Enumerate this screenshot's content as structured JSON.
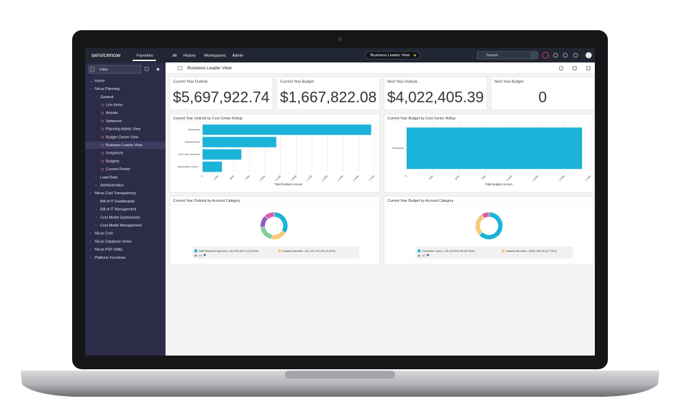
{
  "topbar": {
    "brand": "servicenow",
    "tabs": [
      "Favorites",
      "All",
      "History",
      "Workspaces",
      "Admin"
    ],
    "workspace": "Business Leader View",
    "search": "Search"
  },
  "sidebar": {
    "filter": "Filter",
    "items": [
      "Home",
      "Nicus Planning",
      "General",
      "Line Items",
      "Actuals",
      "Variances",
      "Planning Admin View",
      "Budget Owner View",
      "Business Leader View",
      "Snapshots",
      "Budgets",
      "Current Period",
      "Load Data",
      "Administration",
      "Nicus Cost Transparency",
      "Bill of IT Dashboards",
      "Bill of IT Management",
      "Cost Model Dashboards",
      "Cost Model Management",
      "Nicus Core",
      "Nicus Database Views",
      "Nicus PDF Utility",
      "Platform Functions"
    ]
  },
  "toolbar": {
    "title": "Business Leader View"
  },
  "cards": [
    {
      "title": "Current Year Outlook",
      "value": "$5,697,922.74"
    },
    {
      "title": "Current Year Budget",
      "value": "$1,667,822.08"
    },
    {
      "title": "Next Year Outlook",
      "value": "$4,022,405.39"
    },
    {
      "title": "Next Year Budget",
      "value": "0"
    }
  ],
  "chart_data": [
    {
      "type": "bar",
      "orientation": "horizontal",
      "title": "Current Year Outlook by Cost Center Rollup",
      "categories": [
        "Enterprise",
        "Infrastructure",
        "End User Services",
        "Application Devel..."
      ],
      "values": [
        2700000,
        1180000,
        620000,
        310000
      ],
      "color": "#1bb3d8",
      "xlabel": "Total Outlook Amount",
      "xlim": [
        0,
        2750000
      ],
      "xticks": [
        0,
        {
          "value": 250000,
          "label": "250k"
        },
        {
          "value": 500000,
          "label": "500k"
        },
        {
          "value": 750000,
          "label": "750k"
        },
        {
          "value": 1000000,
          "label": "1,000k"
        },
        {
          "value": 1250000,
          "label": "1,250k"
        },
        {
          "value": 1500000,
          "label": "1,500k"
        },
        {
          "value": 1750000,
          "label": "1,750k"
        },
        {
          "value": 2000000,
          "label": "2,000k"
        },
        {
          "value": 2250000,
          "label": "2,250k"
        },
        {
          "value": 2500000,
          "label": "2,500k"
        },
        {
          "value": 2750000,
          "label": "2,750k"
        }
      ],
      "grid": true
    },
    {
      "type": "bar",
      "orientation": "horizontal",
      "title": "Current Year Budget by Cost Center Rollup",
      "categories": [
        "Enterprise"
      ],
      "values": [
        1667822.08
      ],
      "color": "#1bb3d8",
      "xlabel": "Total Budget Amount",
      "xlim": [
        0,
        1750000
      ],
      "xticks": [
        0,
        {
          "value": 250000,
          "label": "250k"
        },
        {
          "value": 500000,
          "label": "500k"
        },
        {
          "value": 750000,
          "label": "750k"
        },
        {
          "value": 1000000,
          "label": "1,000k"
        },
        {
          "value": 1250000,
          "label": "1,250k"
        },
        {
          "value": 1500000,
          "label": "1,500k"
        },
        {
          "value": 1750000,
          "label": "1,750k"
        }
      ],
      "grid": true
    },
    {
      "type": "pie",
      "donut": true,
      "title": "Current Year Outlook by Account Category",
      "categories": [
        "Staff Related Expenses",
        "Salaries Benefits",
        null,
        null,
        null
      ],
      "values": [
        33.8,
        19.34,
        20,
        14.86,
        12
      ],
      "colors": [
        "#1bb3d8",
        "#f7c978",
        "#7fcf9a",
        "#8e5bc2",
        "#e05aa8"
      ],
      "legend": [
        {
          "label": "Staff Related Expenses = $1,925,693.14 (33.8%)",
          "color": "#1bb3d8"
        },
        {
          "label": "Salaries Benefits = $1,101,704.33 (19.34%)",
          "color": "#f7c978"
        }
      ],
      "page": "1/3"
    },
    {
      "type": "pie",
      "donut": true,
      "title": "Current Year Budget by Account Category",
      "categories": [
        "Contractor Labor",
        "Salaries Benefits",
        null
      ],
      "values": [
        62.96,
        27.78,
        9.26
      ],
      "colors": [
        "#1bb3d8",
        "#f7c978",
        "#e05aa8"
      ],
      "legend": [
        {
          "label": "Contractor Labor = $1,049,999.99 (62.96%)",
          "color": "#1bb3d8"
        },
        {
          "label": "Salaries Benefits = $463,280.45 (27.78%)",
          "color": "#f7c978"
        }
      ],
      "page": "1/2"
    }
  ]
}
